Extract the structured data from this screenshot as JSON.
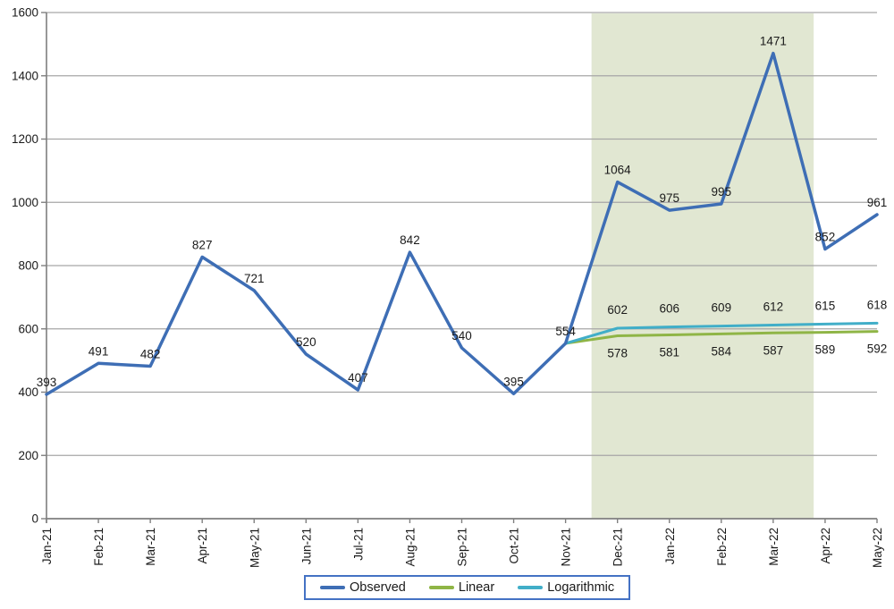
{
  "chart_data": {
    "type": "line",
    "title": "",
    "categories": [
      "Jan-21",
      "Feb-21",
      "Mar-21",
      "Apr-21",
      "May-21",
      "Jun-21",
      "Jul-21",
      "Aug-21",
      "Sep-21",
      "Oct-21",
      "Nov-21",
      "Dec-21",
      "Jan-22",
      "Feb-22",
      "Mar-22",
      "Apr-22",
      "May-22"
    ],
    "y_axis": {
      "min": 0,
      "max": 1600,
      "step": 200,
      "tick_labels": [
        "0",
        "200",
        "400",
        "600",
        "800",
        "1000",
        "1200",
        "1400",
        "1600"
      ]
    },
    "x_axis": {
      "tick_labels": [
        "Jan-21",
        "Feb-21",
        "Mar-21",
        "Apr-21",
        "May-21",
        "Jun-21",
        "Jul-21",
        "Aug-21",
        "Sep-21",
        "Oct-21",
        "Nov-21",
        "Dec-21",
        "Jan-22",
        "Feb-22",
        "Mar-22",
        "Apr-22",
        "May-22"
      ],
      "label_rotation": -90
    },
    "series": [
      {
        "name": "Observed",
        "color": "#3E6EB5",
        "line_width": 3.5,
        "values": [
          393,
          491,
          482,
          827,
          721,
          520,
          407,
          842,
          540,
          395,
          554,
          1064,
          975,
          995,
          1471,
          852,
          961
        ],
        "data_labels": [
          393,
          491,
          482,
          827,
          721,
          520,
          407,
          842,
          540,
          395,
          554,
          1064,
          975,
          995,
          1471,
          852,
          961
        ],
        "label_position": "above"
      },
      {
        "name": "Linear",
        "color": "#8FB546",
        "line_width": 3,
        "values": [
          null,
          null,
          null,
          null,
          null,
          null,
          null,
          null,
          null,
          null,
          554,
          578,
          581,
          584,
          587,
          589,
          592
        ],
        "data_labels": [
          null,
          null,
          null,
          null,
          null,
          null,
          null,
          null,
          null,
          null,
          null,
          578,
          581,
          584,
          587,
          589,
          592
        ],
        "label_position": "below"
      },
      {
        "name": "Logarithmic",
        "color": "#41AEC8",
        "line_width": 3,
        "values": [
          null,
          null,
          null,
          null,
          null,
          null,
          null,
          null,
          null,
          null,
          554,
          602,
          606,
          609,
          612,
          615,
          618
        ],
        "data_labels": [
          null,
          null,
          null,
          null,
          null,
          null,
          null,
          null,
          null,
          null,
          null,
          602,
          606,
          609,
          612,
          615,
          618
        ],
        "label_position": "above"
      }
    ],
    "forecast_region": {
      "color": "#E1E7D2",
      "start_category_index": 10.5,
      "end_category_index": 14.78
    },
    "legend": {
      "position": "bottom",
      "border_color": "#4472C4",
      "entries": [
        "Observed",
        "Linear",
        "Logarithmic"
      ]
    },
    "grid": {
      "show": true,
      "color": "#A6A6A6"
    },
    "axis_color": "#7F7F7F",
    "text_color": "#1A1A1A"
  }
}
